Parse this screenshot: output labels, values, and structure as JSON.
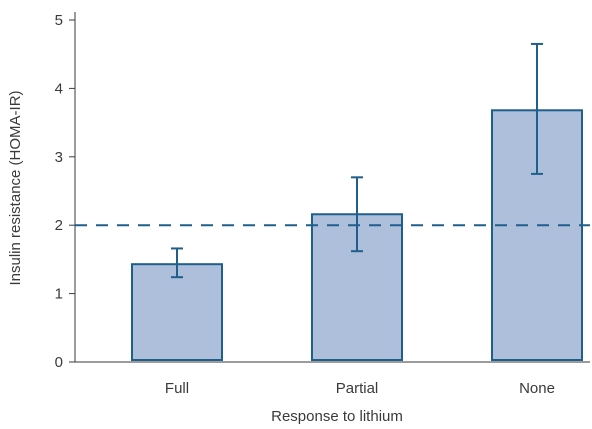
{
  "chart_data": {
    "type": "bar",
    "categories": [
      "Full",
      "Partial",
      "None"
    ],
    "values": [
      1.43,
      2.16,
      3.68
    ],
    "error_low": [
      1.24,
      1.62,
      2.75
    ],
    "error_high": [
      1.66,
      2.7,
      4.65
    ],
    "reference_line": 2,
    "reference_line_style": "dashed",
    "xlabel": "Response to lithium",
    "ylabel": "Insulin resistance (HOMA-IR)",
    "ylim": [
      0,
      5
    ],
    "yticks": [
      0,
      1,
      2,
      3,
      4,
      5
    ],
    "grid": false,
    "bar_fill": "#aebfdc",
    "bar_stroke": "#1f5f8b",
    "error_color": "#1f5f8b",
    "reference_color": "#1f5f8b",
    "axis_color": "#3a3a3a"
  }
}
